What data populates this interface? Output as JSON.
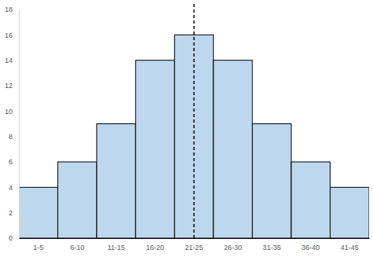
{
  "chart_data": {
    "type": "bar",
    "categories": [
      "1-5",
      "6-10",
      "11-15",
      "16-20",
      "21-25",
      "26-30",
      "31-35",
      "36-40",
      "41-45"
    ],
    "values": [
      4,
      6,
      9,
      14,
      16,
      14,
      9,
      6,
      4
    ],
    "color": "#bdd7ee",
    "ylim": [
      0,
      18
    ],
    "yticks": [
      0,
      2,
      4,
      6,
      8,
      10,
      12,
      14,
      16,
      18
    ],
    "grid": false,
    "reference_line": "21-25"
  }
}
